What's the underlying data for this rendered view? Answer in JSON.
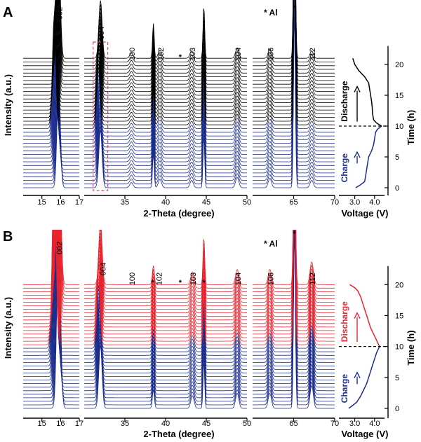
{
  "chart_data": [
    {
      "panel": "A",
      "type": "line",
      "xlabel": "2-Theta (degree)",
      "ylabel": "Intensity (a.u.)",
      "segments": [
        {
          "xlim": [
            14,
            17
          ],
          "ticks": [
            15,
            16,
            17
          ]
        },
        {
          "xlim": [
            30,
            50
          ],
          "ticks": [
            35,
            40,
            45,
            50
          ]
        },
        {
          "xlim": [
            60,
            70
          ],
          "ticks": [
            65,
            70
          ]
        }
      ],
      "legend_text": "* Al",
      "peak_labels": [
        {
          "text": "002",
          "x": 15.9
        },
        {
          "text": "004",
          "x": 32.0
        },
        {
          "text": "100",
          "x": 35.8
        },
        {
          "text": "*",
          "x": 38.5
        },
        {
          "text": "102",
          "x": 39.3
        },
        {
          "text": "*",
          "x": 41.8
        },
        {
          "text": "103",
          "x": 43.2
        },
        {
          "text": "*",
          "x": 44.7
        },
        {
          "text": "104",
          "x": 48.8
        },
        {
          "text": "106",
          "x": 62.1
        },
        {
          "text": "*",
          "x": 65.1
        },
        {
          "text": "112",
          "x": 67.2
        }
      ],
      "peaks": [
        {
          "x": 15.9,
          "h": 1.0,
          "w": 0.09
        },
        {
          "x": 32.0,
          "h": 0.55,
          "w": 0.2
        },
        {
          "x": 35.8,
          "h": 0.05,
          "w": 0.2
        },
        {
          "x": 38.5,
          "h": 0.33,
          "w": 0.1
        },
        {
          "x": 39.3,
          "h": 0.08,
          "w": 0.2
        },
        {
          "x": 43.2,
          "h": 0.07,
          "w": 0.2
        },
        {
          "x": 44.7,
          "h": 0.5,
          "w": 0.1
        },
        {
          "x": 48.8,
          "h": 0.1,
          "w": 0.2
        },
        {
          "x": 62.1,
          "h": 0.09,
          "w": 0.2
        },
        {
          "x": 65.1,
          "h": 1.6,
          "w": 0.12
        },
        {
          "x": 67.2,
          "h": 0.07,
          "w": 0.2
        }
      ],
      "scan_count": 36,
      "scan_time_h": [
        0,
        21
      ],
      "series": [
        {
          "name": "Charge",
          "time_h": [
            0,
            10
          ],
          "color": "#1c2d8c"
        },
        {
          "name": "Discharge",
          "time_h": [
            10,
            21
          ],
          "color": "#000000"
        }
      ],
      "voltage_profile": {
        "xlabel": "Voltage (V)",
        "xlim": [
          2.2,
          4.5
        ],
        "xticks": [
          3.0,
          4.0
        ],
        "time_h": [
          0,
          0.5,
          1,
          2,
          3,
          4,
          5,
          6,
          7,
          8,
          9,
          9.5,
          10,
          10.5,
          11,
          12,
          13,
          14,
          15,
          16,
          17,
          18,
          19,
          20,
          21
        ],
        "voltage_v": [
          3.05,
          3.3,
          3.5,
          3.55,
          3.6,
          3.65,
          3.7,
          3.85,
          3.95,
          4.0,
          4.05,
          4.15,
          4.35,
          4.1,
          3.95,
          3.9,
          3.88,
          3.85,
          3.8,
          3.75,
          3.7,
          3.5,
          3.2,
          3.0,
          2.9
        ]
      },
      "time_axis": {
        "label": "Time (h)",
        "ylim": [
          -0.5,
          23
        ],
        "ticks": [
          0,
          5,
          10,
          15,
          20
        ]
      },
      "divider_time_h": 10,
      "colors": {
        "charge": "#1c2d8c",
        "discharge": "#000000",
        "highlight_box": "#e0398a"
      }
    },
    {
      "panel": "B",
      "type": "line",
      "xlabel": "2-Theta (degree)",
      "ylabel": "Intensity (a.u.)",
      "segments": [
        {
          "xlim": [
            14,
            17
          ],
          "ticks": [
            15,
            16,
            17
          ]
        },
        {
          "xlim": [
            30,
            50
          ],
          "ticks": [
            35,
            40,
            45,
            50
          ]
        },
        {
          "xlim": [
            60,
            70
          ],
          "ticks": [
            65,
            70
          ]
        }
      ],
      "legend_text": "* Al",
      "peak_labels": [
        {
          "text": "002",
          "x": 15.9
        },
        {
          "text": "004",
          "x": 32.2
        },
        {
          "text": "100",
          "x": 35.8
        },
        {
          "text": "*",
          "x": 38.4
        },
        {
          "text": "102",
          "x": 39.1
        },
        {
          "text": "*",
          "x": 41.8
        },
        {
          "text": "103",
          "x": 43.3
        },
        {
          "text": "*",
          "x": 44.7
        },
        {
          "text": "104",
          "x": 48.8
        },
        {
          "text": "106",
          "x": 62.1
        },
        {
          "text": "*",
          "x": 65.1
        },
        {
          "text": "112",
          "x": 67.2
        }
      ],
      "peaks": [
        {
          "x": 15.9,
          "h": 1.4,
          "w": 0.1
        },
        {
          "x": 32.0,
          "h": 0.5,
          "w": 0.2
        },
        {
          "x": 38.5,
          "h": 0.15,
          "w": 0.12
        },
        {
          "x": 43.3,
          "h": 0.1,
          "w": 0.2
        },
        {
          "x": 44.7,
          "h": 0.38,
          "w": 0.1
        },
        {
          "x": 48.8,
          "h": 0.12,
          "w": 0.2
        },
        {
          "x": 62.1,
          "h": 0.12,
          "w": 0.2
        },
        {
          "x": 65.1,
          "h": 1.35,
          "w": 0.12
        },
        {
          "x": 67.2,
          "h": 0.18,
          "w": 0.2
        }
      ],
      "scan_count": 36,
      "scan_time_h": [
        0,
        20
      ],
      "series": [
        {
          "name": "Charge",
          "time_h": [
            0,
            10
          ],
          "color": "#1c2d8c"
        },
        {
          "name": "Discharge",
          "time_h": [
            10,
            20
          ],
          "color": "#e8242f"
        }
      ],
      "voltage_profile": {
        "xlabel": "Voltage (V)",
        "xlim": [
          2.2,
          4.5
        ],
        "xticks": [
          3.0,
          4.0
        ],
        "time_h": [
          0,
          0.5,
          1,
          2,
          3,
          4,
          5,
          6,
          7,
          8,
          9,
          10,
          11,
          12,
          13,
          14,
          15,
          16,
          17,
          18,
          19,
          19.5,
          20
        ],
        "voltage_v": [
          2.7,
          2.9,
          3.1,
          3.3,
          3.45,
          3.6,
          3.7,
          3.8,
          3.9,
          4.0,
          4.1,
          4.25,
          4.1,
          3.95,
          3.8,
          3.7,
          3.6,
          3.5,
          3.4,
          3.3,
          3.15,
          3.0,
          2.75
        ]
      },
      "time_axis": {
        "label": "Time (h)",
        "ylim": [
          -0.5,
          23
        ],
        "ticks": [
          0,
          5,
          10,
          15,
          20
        ]
      },
      "divider_time_h": 10,
      "colors": {
        "charge": "#1c2d8c",
        "discharge": "#e8242f"
      }
    }
  ]
}
